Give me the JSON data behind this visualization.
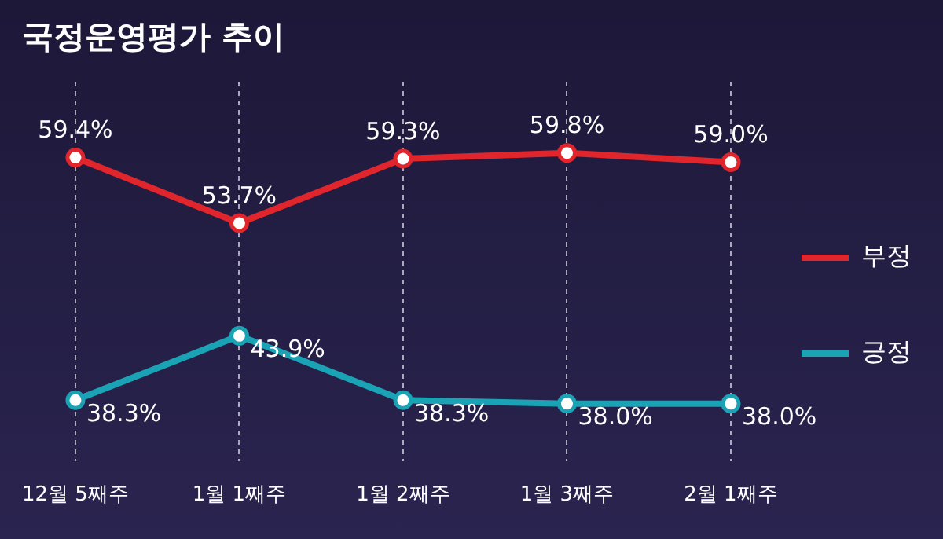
{
  "chart_data": {
    "type": "line",
    "title": "국정운영평가 추이",
    "categories": [
      "12월 5째주",
      "1월 1째주",
      "1월 2째주",
      "1월 3째주",
      "2월 1째주"
    ],
    "series": [
      {
        "name": "부정",
        "color": "#e0262c",
        "values": [
          59.4,
          53.7,
          59.3,
          59.8,
          59.0
        ],
        "value_labels": [
          "59.4%",
          "53.7%",
          "59.3%",
          "59.8%",
          "59.0%"
        ]
      },
      {
        "name": "긍정",
        "color": "#1aa3b4",
        "values": [
          38.3,
          43.9,
          38.3,
          38.0,
          38.0
        ],
        "value_labels": [
          "38.3%",
          "43.9%",
          "38.3%",
          "38.0%",
          "38.0%"
        ]
      }
    ],
    "ylim": [
      33,
      66
    ],
    "tick_labels": "x",
    "grid": "x",
    "legend": "right",
    "marker": "circle",
    "line_style": "solid"
  }
}
